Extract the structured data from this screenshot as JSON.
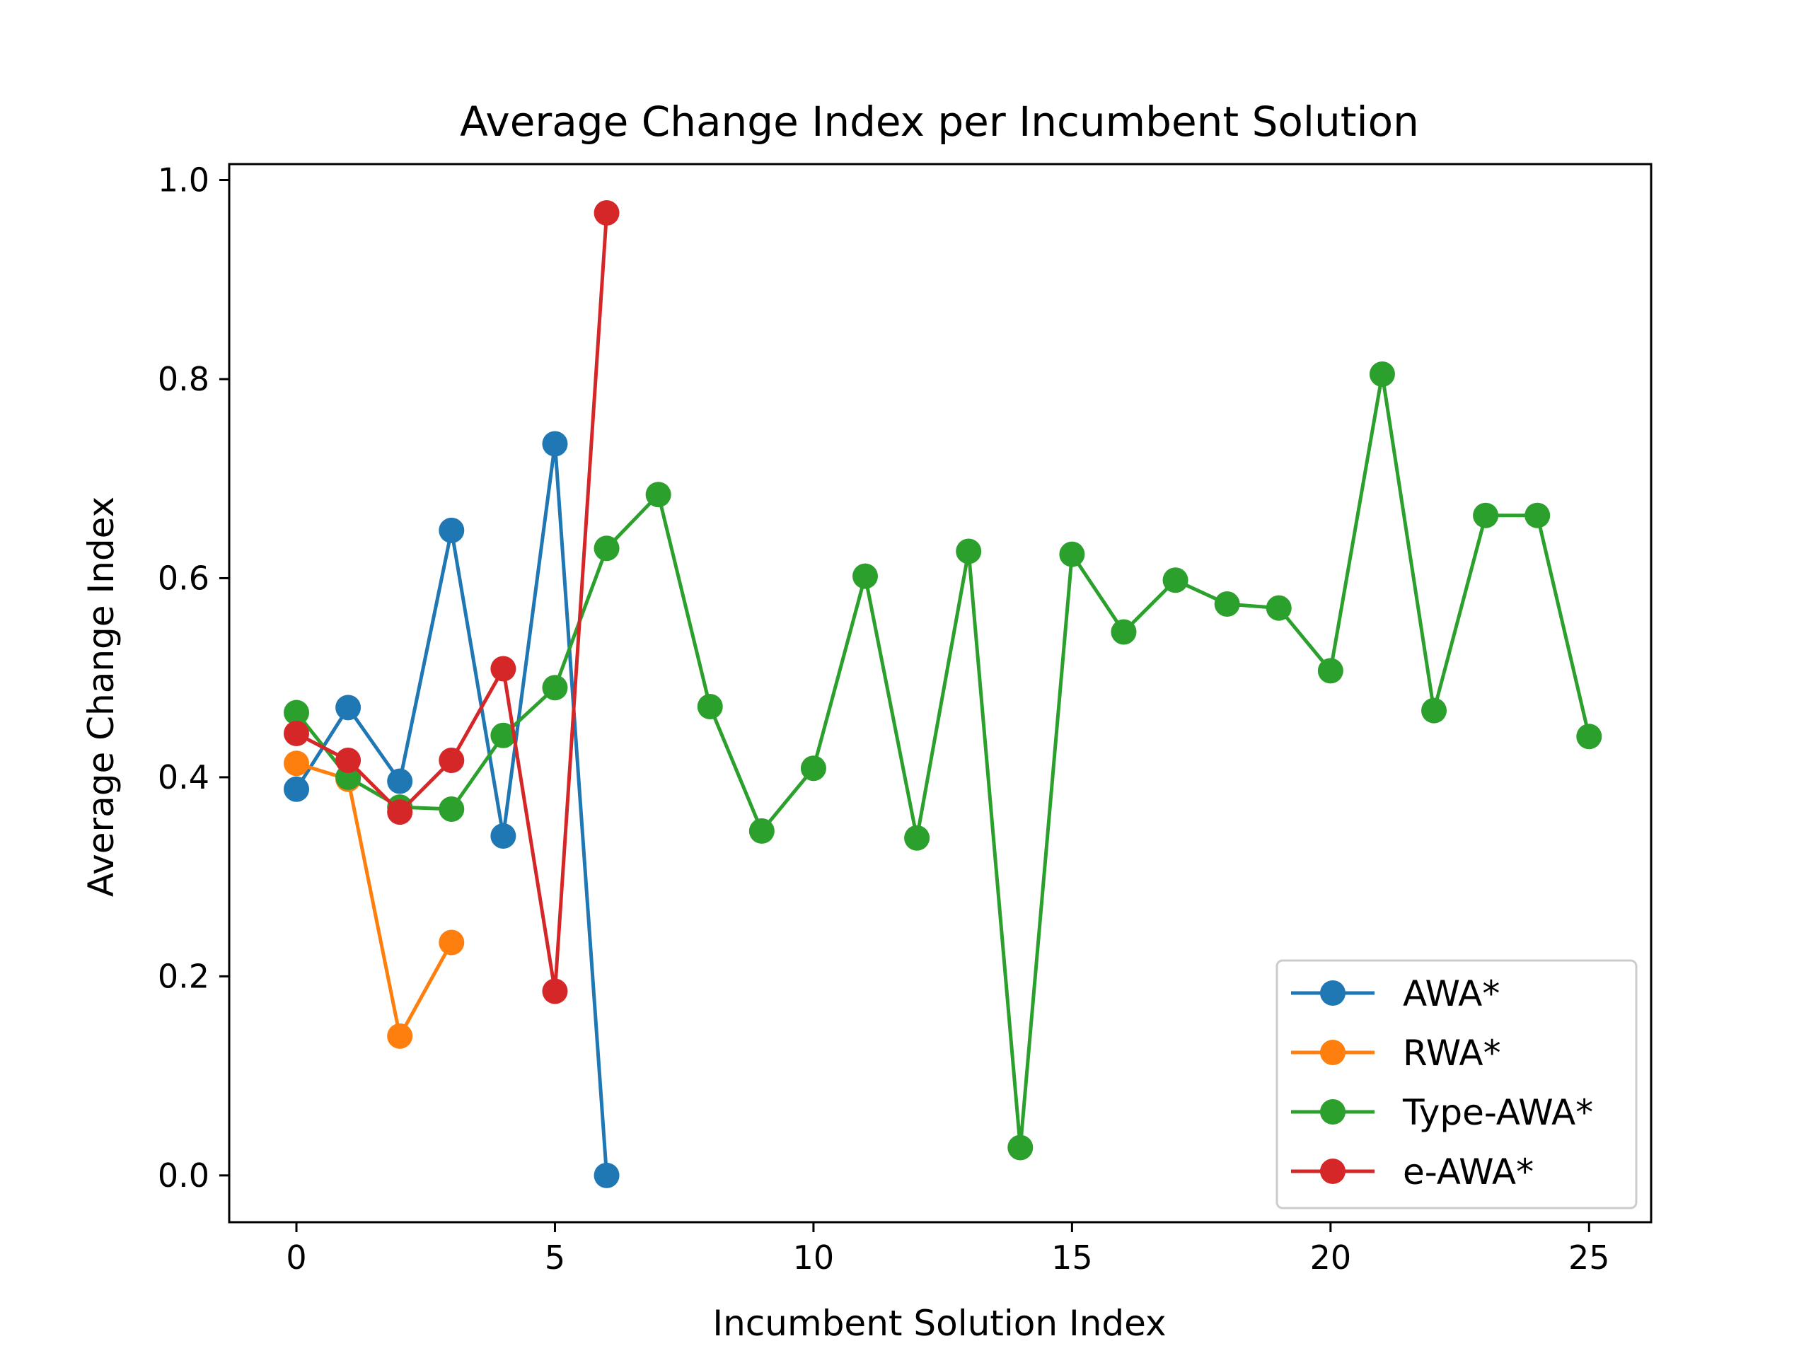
{
  "chart_data": {
    "type": "line",
    "title": "Average Change Index per Incumbent Solution",
    "xlabel": "Incumbent Solution Index",
    "ylabel": "Average Change Index",
    "xlim": [
      -1.3,
      26.2
    ],
    "ylim": [
      -0.047,
      1.016
    ],
    "xticks": [
      0,
      5,
      10,
      15,
      20,
      25
    ],
    "yticks": [
      0.0,
      0.2,
      0.4,
      0.6,
      0.8,
      1.0
    ],
    "xtick_labels": [
      "0",
      "5",
      "10",
      "15",
      "20",
      "25"
    ],
    "ytick_labels": [
      "0.0",
      "0.2",
      "0.4",
      "0.6",
      "0.8",
      "1.0"
    ],
    "grid": false,
    "legend_position": "lower-right",
    "series": [
      {
        "name": "AWA*",
        "color": "#1f77b4",
        "x": [
          0,
          1,
          2,
          3,
          4,
          5,
          6
        ],
        "y": [
          0.388,
          0.47,
          0.396,
          0.648,
          0.341,
          0.735,
          0.0
        ]
      },
      {
        "name": "RWA*",
        "color": "#ff7f0e",
        "x": [
          0,
          1,
          2,
          3
        ],
        "y": [
          0.414,
          0.398,
          0.14,
          0.234
        ]
      },
      {
        "name": "Type-AWA*",
        "color": "#2ca02c",
        "x": [
          0,
          1,
          2,
          3,
          4,
          5,
          6,
          7,
          8,
          9,
          10,
          11,
          12,
          13,
          14,
          15,
          16,
          17,
          18,
          19,
          20,
          21,
          22,
          23,
          24,
          25
        ],
        "y": [
          0.465,
          0.4,
          0.37,
          0.368,
          0.442,
          0.49,
          0.63,
          0.684,
          0.471,
          0.346,
          0.409,
          0.602,
          0.339,
          0.627,
          0.028,
          0.624,
          0.546,
          0.598,
          0.574,
          0.57,
          0.507,
          0.805,
          0.467,
          0.663,
          0.663,
          0.441
        ]
      },
      {
        "name": "e-AWA*",
        "color": "#d62728",
        "x": [
          0,
          1,
          2,
          3,
          4,
          5,
          6
        ],
        "y": [
          0.444,
          0.417,
          0.365,
          0.417,
          0.509,
          0.185,
          0.967
        ]
      }
    ]
  }
}
